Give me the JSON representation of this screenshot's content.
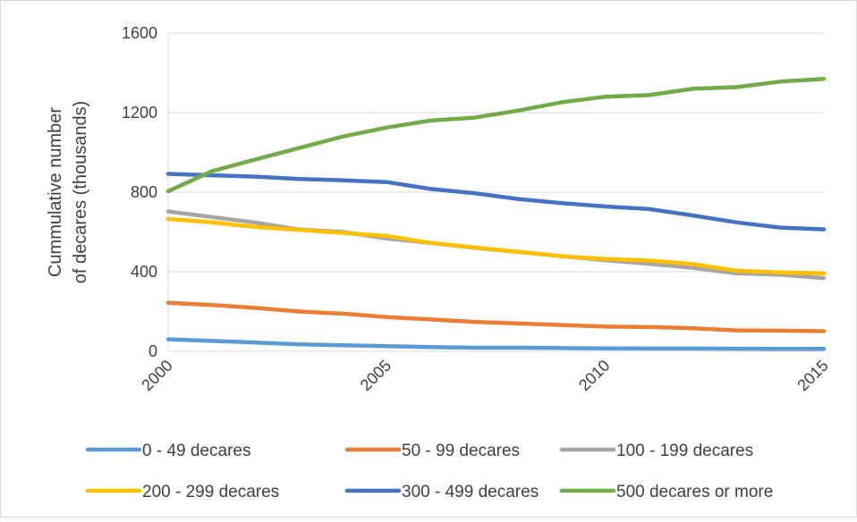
{
  "chart_data": {
    "type": "line",
    "title": "",
    "xlabel": "",
    "ylabel": "Cummulative number of decares (thousands)",
    "ylabel_lines": [
      "Cummulative number",
      "of decares (thousands)"
    ],
    "xlim": [
      2000,
      2015
    ],
    "ylim": [
      0,
      1600
    ],
    "x_ticks": [
      2000,
      2005,
      2010,
      2015
    ],
    "x_tick_labels": [
      "2000",
      "2005",
      "2010",
      "2015"
    ],
    "y_ticks": [
      0,
      400,
      800,
      1200,
      1600
    ],
    "y_tick_labels": [
      "0",
      "400",
      "800",
      "1200",
      "1600"
    ],
    "grid": "horizontal",
    "legend_position": "bottom",
    "x": [
      2000,
      2001,
      2002,
      2003,
      2004,
      2005,
      2006,
      2007,
      2008,
      2009,
      2010,
      2011,
      2012,
      2013,
      2014,
      2015
    ],
    "series": [
      {
        "name": "0 - 49 decares",
        "color": "#5B9BD5",
        "values": [
          60,
          52,
          44,
          35,
          30,
          26,
          21,
          18,
          18,
          16,
          15,
          14,
          14,
          13,
          12,
          12
        ]
      },
      {
        "name": "50 - 99 decares",
        "color": "#ED7D31",
        "values": [
          244,
          233,
          218,
          200,
          189,
          172,
          160,
          148,
          140,
          132,
          124,
          122,
          116,
          105,
          104,
          101
        ]
      },
      {
        "name": "100 - 199 decares",
        "color": "#A5A5A5",
        "values": [
          703,
          675,
          647,
          612,
          600,
          567,
          545,
          520,
          500,
          478,
          458,
          440,
          420,
          392,
          385,
          368
        ]
      },
      {
        "name": "200 - 299 decares",
        "color": "#FFC000",
        "values": [
          665,
          648,
          625,
          610,
          595,
          580,
          545,
          522,
          500,
          478,
          464,
          456,
          438,
          405,
          397,
          392
        ]
      },
      {
        "name": "300 - 499 decares",
        "color": "#4472C4",
        "values": [
          892,
          885,
          878,
          866,
          860,
          851,
          816,
          795,
          766,
          745,
          728,
          715,
          683,
          648,
          622,
          613
        ]
      },
      {
        "name": "500 decares or more",
        "color": "#70AD47",
        "values": [
          805,
          905,
          965,
          1022,
          1080,
          1125,
          1160,
          1175,
          1210,
          1252,
          1280,
          1288,
          1320,
          1328,
          1356,
          1370
        ]
      }
    ]
  }
}
